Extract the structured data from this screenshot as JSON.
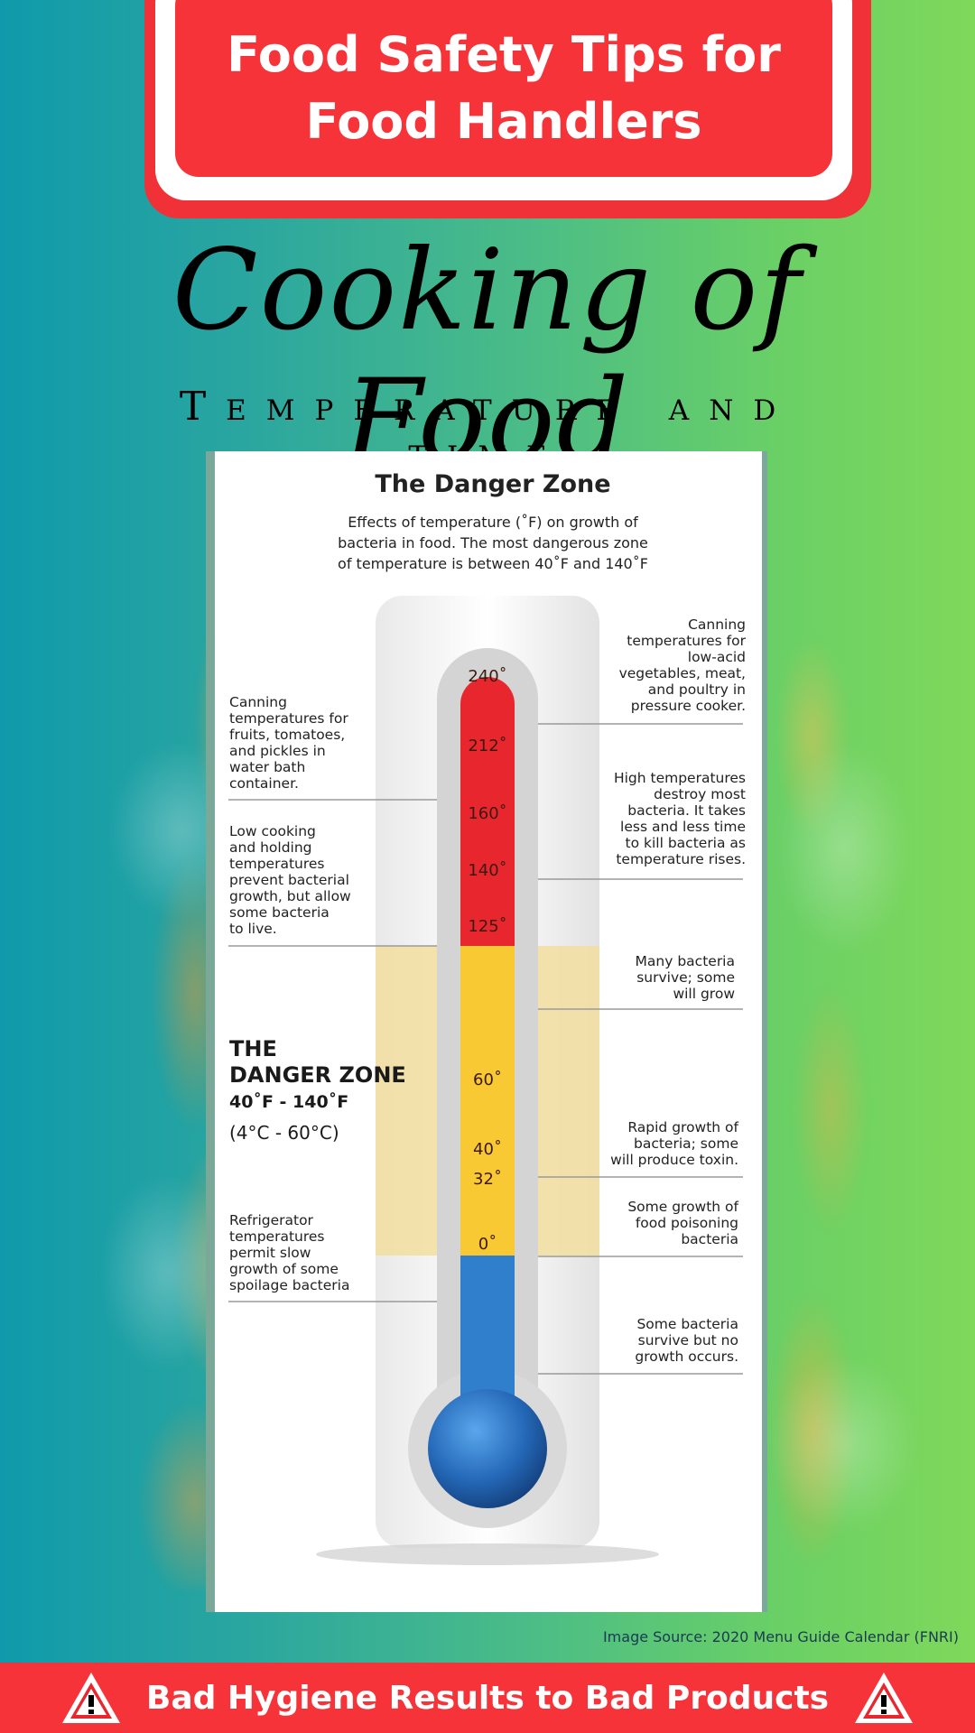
{
  "header": {
    "title_line1": "Food Safety Tips for",
    "title_line2": "Food Handlers"
  },
  "script_title": "Cooking of Food",
  "subtitle": "Temperature and time",
  "diagram": {
    "title": "The Danger Zone",
    "description_lines": [
      "Effects of temperature (˚F) on growth of",
      "bacteria in food. The most dangerous zone",
      "of temperature is between 40˚F and 140˚F"
    ],
    "temperatures": [
      {
        "value": 240,
        "label": "240˚"
      },
      {
        "value": 212,
        "label": "212˚"
      },
      {
        "value": 160,
        "label": "160˚"
      },
      {
        "value": 140,
        "label": "140˚"
      },
      {
        "value": 125,
        "label": "125˚"
      },
      {
        "value": 60,
        "label": "60˚"
      },
      {
        "value": 40,
        "label": "40˚"
      },
      {
        "value": 32,
        "label": "32˚"
      },
      {
        "value": 0,
        "label": "0˚"
      }
    ],
    "left_notes": [
      {
        "lines": [
          "Canning",
          "temperatures for",
          "fruits, tomatoes,",
          "and pickles in",
          "water bath",
          "container."
        ]
      },
      {
        "lines": [
          "Low cooking",
          "and holding",
          "temperatures",
          "prevent bacterial",
          "growth, but allow",
          "some bacteria",
          "to live."
        ]
      },
      {
        "lines": [
          "Refrigerator",
          "temperatures",
          "permit slow",
          "growth of some",
          "spoilage bacteria"
        ]
      }
    ],
    "right_notes": [
      {
        "lines": [
          "Canning",
          "temperatures for",
          "low-acid",
          "vegetables, meat,",
          "and poultry in",
          "pressure cooker."
        ]
      },
      {
        "lines": [
          "High temperatures",
          "destroy most",
          "bacteria. It takes",
          "less and less time",
          "to kill bacteria as",
          "temperature rises."
        ]
      },
      {
        "lines": [
          "Many bacteria",
          "survive; some",
          "will grow"
        ]
      },
      {
        "lines": [
          "Rapid growth of",
          "bacteria; some",
          "will produce toxin."
        ]
      },
      {
        "lines": [
          "Some growth of",
          "food poisoning",
          "bacteria"
        ]
      },
      {
        "lines": [
          "Some bacteria",
          "survive but no",
          "growth occurs."
        ]
      }
    ],
    "danger_zone": {
      "line1": "THE",
      "line2": "DANGER ZONE",
      "range_f": "40˚F - 140˚F",
      "range_c": "(4°C - 60°C)"
    },
    "colors": {
      "hot": "#e8262d",
      "danger": "#f8c933",
      "cold": "#2f7fcc",
      "zone_band": "#f3dea0"
    }
  },
  "image_source": "Image Source: 2020 Menu Guide Calendar (FNRI)",
  "bottom_banner": "Bad Hygiene Results to Bad Products"
}
